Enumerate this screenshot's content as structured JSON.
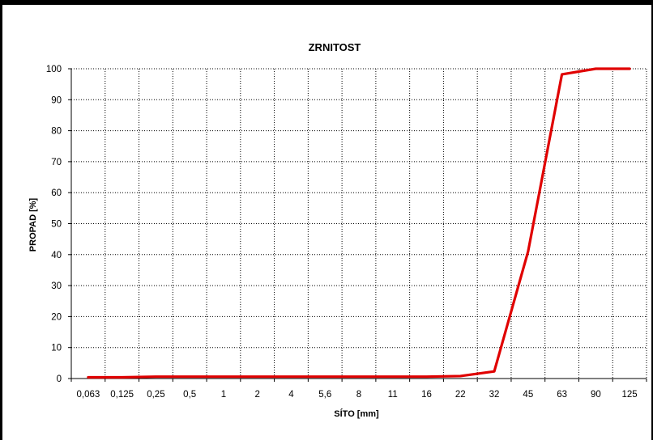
{
  "chart_data": {
    "type": "line",
    "title": "ZRNITOST",
    "xlabel": "SÍTO [mm]",
    "ylabel": "PROPAD [%]",
    "x_tick_labels": [
      "0,063",
      "0,125",
      "0,25",
      "0,5",
      "1",
      "2",
      "4",
      "5,6",
      "8",
      "11",
      "16",
      "22",
      "32",
      "45",
      "63",
      "90",
      "125"
    ],
    "y_ticks": [
      0,
      10,
      20,
      30,
      40,
      50,
      60,
      70,
      80,
      90,
      100
    ],
    "ylim": [
      0,
      100
    ],
    "grid": true,
    "series": [
      {
        "color": "#e00000",
        "points": [
          {
            "x": "0,063",
            "y": 0.4
          },
          {
            "x": "0,125",
            "y": 0.4
          },
          {
            "x": "0,25",
            "y": 0.6
          },
          {
            "x": "0,5",
            "y": 0.6
          },
          {
            "x": "1",
            "y": 0.6
          },
          {
            "x": "2",
            "y": 0.6
          },
          {
            "x": "4",
            "y": 0.6
          },
          {
            "x": "5,6",
            "y": 0.6
          },
          {
            "x": "8",
            "y": 0.6
          },
          {
            "x": "11",
            "y": 0.6
          },
          {
            "x": "16",
            "y": 0.6
          },
          {
            "x": "22",
            "y": 0.8
          },
          {
            "x": "32",
            "y": 2.3
          },
          {
            "x": "45",
            "y": 41
          },
          {
            "x": "63",
            "y": 98.2
          },
          {
            "x": "90",
            "y": 100
          },
          {
            "x": "125",
            "y": 100
          }
        ]
      }
    ]
  },
  "colors": {
    "frame": "#000000",
    "grid": "#000000",
    "series": "#e00000"
  }
}
